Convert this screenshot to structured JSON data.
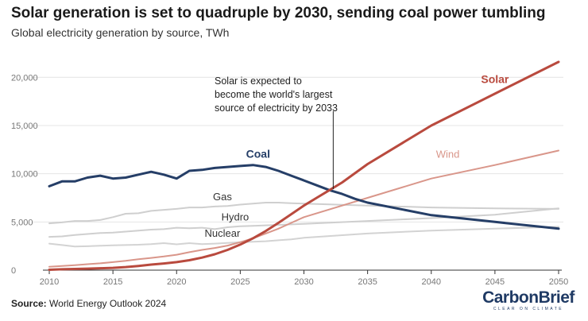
{
  "title": "Solar generation is set to quadruple by 2030, sending coal power tumbling",
  "subtitle": "Global electricity generation by source, TWh",
  "source_label": "Source:",
  "source_text": "World Energy Outlook 2024",
  "logo": {
    "text": "CarbonBrief",
    "tagline": "CLEAR ON CLIMATE",
    "color": "#1f3a64"
  },
  "annotation": {
    "lines": [
      "Solar is expected to",
      "become the world's largest",
      "source of electricity by 2033"
    ],
    "x": 2032.3,
    "y": 8400
  },
  "chart_data": {
    "type": "line",
    "xlim": [
      2010,
      2050
    ],
    "ylim": [
      0,
      22000
    ],
    "x_ticks": [
      2010,
      2015,
      2020,
      2025,
      2030,
      2035,
      2040,
      2045,
      2050
    ],
    "y_ticks": [
      0,
      5000,
      10000,
      15000,
      20000
    ],
    "y_tick_labels": [
      "0",
      "5,000",
      "10,000",
      "15,000",
      "20,000"
    ],
    "grid": true,
    "series": [
      {
        "name": "Nuclear",
        "color": "#d3d3d3",
        "bold": false,
        "label_x": 2023.6,
        "label_y": 3450,
        "points": [
          [
            2010,
            2750
          ],
          [
            2011,
            2600
          ],
          [
            2012,
            2450
          ],
          [
            2013,
            2480
          ],
          [
            2014,
            2530
          ],
          [
            2015,
            2570
          ],
          [
            2016,
            2600
          ],
          [
            2017,
            2640
          ],
          [
            2018,
            2700
          ],
          [
            2019,
            2800
          ],
          [
            2020,
            2680
          ],
          [
            2021,
            2800
          ],
          [
            2022,
            2700
          ],
          [
            2023,
            2750
          ],
          [
            2024,
            2820
          ],
          [
            2025,
            2900
          ],
          [
            2026,
            2950
          ],
          [
            2027,
            3000
          ],
          [
            2028,
            3100
          ],
          [
            2029,
            3200
          ],
          [
            2030,
            3350
          ],
          [
            2035,
            3800
          ],
          [
            2040,
            4100
          ],
          [
            2045,
            4300
          ],
          [
            2050,
            4500
          ]
        ]
      },
      {
        "name": "Hydro",
        "color": "#cfcfcf",
        "bold": false,
        "label_x": 2024.6,
        "label_y": 5150,
        "points": [
          [
            2010,
            3450
          ],
          [
            2011,
            3500
          ],
          [
            2012,
            3650
          ],
          [
            2013,
            3750
          ],
          [
            2014,
            3850
          ],
          [
            2015,
            3900
          ],
          [
            2016,
            4000
          ],
          [
            2017,
            4100
          ],
          [
            2018,
            4200
          ],
          [
            2019,
            4250
          ],
          [
            2020,
            4400
          ],
          [
            2021,
            4350
          ],
          [
            2022,
            4400
          ],
          [
            2023,
            4250
          ],
          [
            2024,
            4450
          ],
          [
            2025,
            4550
          ],
          [
            2026,
            4600
          ],
          [
            2027,
            4650
          ],
          [
            2028,
            4700
          ],
          [
            2029,
            4750
          ],
          [
            2030,
            4800
          ],
          [
            2035,
            5100
          ],
          [
            2040,
            5400
          ],
          [
            2045,
            5750
          ],
          [
            2050,
            6400
          ]
        ]
      },
      {
        "name": "Gas",
        "color": "#cfcfcf",
        "bold": false,
        "label_x": 2023.6,
        "label_y": 7250,
        "points": [
          [
            2010,
            4850
          ],
          [
            2011,
            4950
          ],
          [
            2012,
            5100
          ],
          [
            2013,
            5100
          ],
          [
            2014,
            5200
          ],
          [
            2015,
            5500
          ],
          [
            2016,
            5850
          ],
          [
            2017,
            5900
          ],
          [
            2018,
            6150
          ],
          [
            2019,
            6250
          ],
          [
            2020,
            6350
          ],
          [
            2021,
            6500
          ],
          [
            2022,
            6500
          ],
          [
            2023,
            6600
          ],
          [
            2024,
            6650
          ],
          [
            2025,
            6800
          ],
          [
            2026,
            6900
          ],
          [
            2027,
            7000
          ],
          [
            2028,
            7000
          ],
          [
            2029,
            6950
          ],
          [
            2030,
            6900
          ],
          [
            2035,
            6700
          ],
          [
            2040,
            6500
          ],
          [
            2045,
            6400
          ],
          [
            2050,
            6350
          ]
        ]
      },
      {
        "name": "Wind",
        "color": "#d9968a",
        "bold": false,
        "label_x": 2041.3,
        "label_y": 11650,
        "points": [
          [
            2010,
            350
          ],
          [
            2011,
            430
          ],
          [
            2012,
            520
          ],
          [
            2013,
            620
          ],
          [
            2014,
            710
          ],
          [
            2015,
            830
          ],
          [
            2016,
            960
          ],
          [
            2017,
            1130
          ],
          [
            2018,
            1270
          ],
          [
            2019,
            1420
          ],
          [
            2020,
            1600
          ],
          [
            2021,
            1860
          ],
          [
            2022,
            2100
          ],
          [
            2023,
            2300
          ],
          [
            2024,
            2550
          ],
          [
            2025,
            2900
          ],
          [
            2026,
            3300
          ],
          [
            2027,
            3800
          ],
          [
            2028,
            4300
          ],
          [
            2029,
            4900
          ],
          [
            2030,
            5500
          ],
          [
            2035,
            7500
          ],
          [
            2040,
            9500
          ],
          [
            2045,
            10900
          ],
          [
            2050,
            12400
          ]
        ]
      },
      {
        "name": "Coal",
        "color": "#253e67",
        "bold": true,
        "label_x": 2026.4,
        "label_y": 11650,
        "points": [
          [
            2010,
            8700
          ],
          [
            2011,
            9200
          ],
          [
            2012,
            9200
          ],
          [
            2013,
            9600
          ],
          [
            2014,
            9800
          ],
          [
            2015,
            9500
          ],
          [
            2016,
            9600
          ],
          [
            2017,
            9900
          ],
          [
            2018,
            10200
          ],
          [
            2019,
            9900
          ],
          [
            2020,
            9500
          ],
          [
            2021,
            10300
          ],
          [
            2022,
            10400
          ],
          [
            2023,
            10600
          ],
          [
            2024,
            10700
          ],
          [
            2025,
            10800
          ],
          [
            2026,
            10900
          ],
          [
            2027,
            10700
          ],
          [
            2028,
            10300
          ],
          [
            2029,
            9800
          ],
          [
            2030,
            9300
          ],
          [
            2031,
            8800
          ],
          [
            2032,
            8300
          ],
          [
            2033,
            7900
          ],
          [
            2034,
            7400
          ],
          [
            2035,
            7000
          ],
          [
            2040,
            5700
          ],
          [
            2045,
            5000
          ],
          [
            2050,
            4300
          ]
        ]
      },
      {
        "name": "Solar",
        "color": "#b94a3e",
        "bold": true,
        "label_x": 2045.0,
        "label_y": 19400,
        "points": [
          [
            2010,
            40
          ],
          [
            2011,
            90
          ],
          [
            2012,
            120
          ],
          [
            2013,
            160
          ],
          [
            2014,
            200
          ],
          [
            2015,
            240
          ],
          [
            2016,
            320
          ],
          [
            2017,
            440
          ],
          [
            2018,
            580
          ],
          [
            2019,
            690
          ],
          [
            2020,
            830
          ],
          [
            2021,
            1030
          ],
          [
            2022,
            1300
          ],
          [
            2023,
            1650
          ],
          [
            2024,
            2100
          ],
          [
            2025,
            2650
          ],
          [
            2026,
            3300
          ],
          [
            2027,
            4050
          ],
          [
            2028,
            4900
          ],
          [
            2029,
            5800
          ],
          [
            2030,
            6700
          ],
          [
            2031,
            7500
          ],
          [
            2032,
            8300
          ],
          [
            2033,
            9100
          ],
          [
            2035,
            11000
          ],
          [
            2040,
            15000
          ],
          [
            2045,
            18300
          ],
          [
            2050,
            21600
          ]
        ]
      }
    ]
  }
}
